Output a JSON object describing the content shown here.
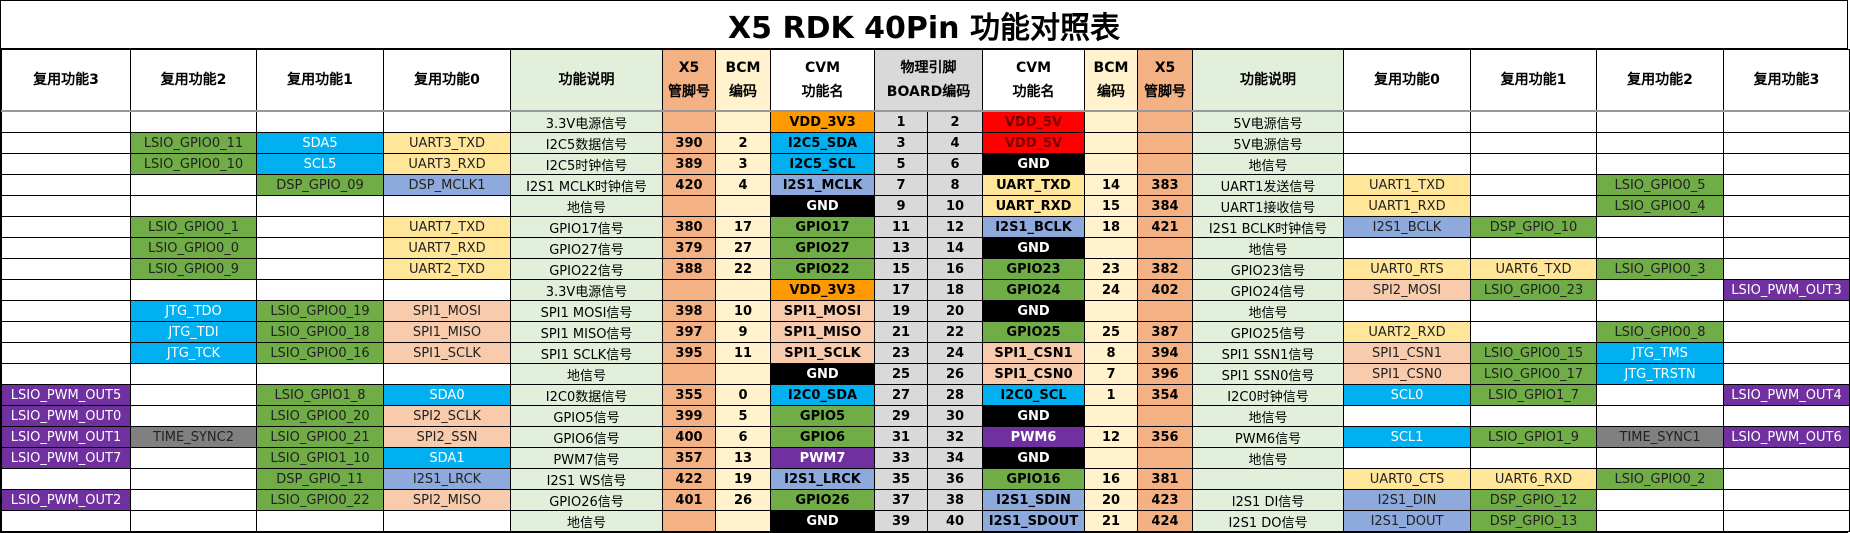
{
  "title": "X5 RDK 40Pin 功能对照表",
  "colors": {
    "x5": "#F4B183",
    "bcm": "#FFF2CC",
    "desc": "#E2EFDA",
    "pin": "#D9D9D9",
    "green": "#70AD47",
    "blue": "#00B0F0",
    "lblue": "#8EA9DB",
    "yellow": "#FFE699",
    "peach": "#F8CBAD",
    "purple": "#7030A0",
    "gray": "#808080",
    "orange": "#FF9900",
    "red": "#FF0000",
    "black": "#000000",
    "none": "#FFFFFF"
  },
  "headers": {
    "left_alt3": "复用功能3",
    "left_alt2": "复用功能2",
    "left_alt1": "复用功能1",
    "left_alt0": "复用功能0",
    "left_desc": "功能说明",
    "left_x5": "X5\n管脚号",
    "left_bcm": "BCM\n编码",
    "left_cvm": "CVM\n功能名",
    "board": "物理引脚\nBOARD编码",
    "right_cvm": "CVM\n功能名",
    "right_bcm": "BCM\n编码",
    "right_x5": "X5\n管脚号",
    "right_desc": "功能说明",
    "right_alt0": "复用功能0",
    "right_alt1": "复用功能1",
    "right_alt2": "复用功能2",
    "right_alt3": "复用功能3"
  },
  "rows": [
    {
      "l3": [
        "",
        ""
      ],
      "l2": [
        "",
        ""
      ],
      "l1": [
        "",
        ""
      ],
      "l0": [
        "",
        ""
      ],
      "ldesc": "3.3V电源信号",
      "lx5": "",
      "lbcm": "",
      "lcvm": [
        "VDD_3V3",
        "orange"
      ],
      "lpin": "1",
      "rpin": "2",
      "rcvm": [
        "VDD_5V",
        "red"
      ],
      "rbcm": "",
      "rx5": "",
      "rdesc": "5V电源信号",
      "r0": [
        "",
        ""
      ],
      "r1": [
        "",
        ""
      ],
      "r2": [
        "",
        ""
      ],
      "r3": [
        "",
        ""
      ]
    },
    {
      "l3": [
        "",
        ""
      ],
      "l2": [
        "LSIO_GPIO0_11",
        "green"
      ],
      "l1": [
        "SDA5",
        "blue"
      ],
      "l0": [
        "UART3_TXD",
        "yellow"
      ],
      "ldesc": "I2C5数据信号",
      "lx5": "390",
      "lbcm": "2",
      "lcvm": [
        "I2C5_SDA",
        "blue"
      ],
      "lpin": "3",
      "rpin": "4",
      "rcvm": [
        "VDD_5V",
        "red"
      ],
      "rbcm": "",
      "rx5": "",
      "rdesc": "5V电源信号",
      "r0": [
        "",
        ""
      ],
      "r1": [
        "",
        ""
      ],
      "r2": [
        "",
        ""
      ],
      "r3": [
        "",
        ""
      ]
    },
    {
      "l3": [
        "",
        ""
      ],
      "l2": [
        "LSIO_GPIO0_10",
        "green"
      ],
      "l1": [
        "SCL5",
        "blue"
      ],
      "l0": [
        "UART3_RXD",
        "yellow"
      ],
      "ldesc": "I2C5时钟信号",
      "lx5": "389",
      "lbcm": "3",
      "lcvm": [
        "I2C5_SCL",
        "blue"
      ],
      "lpin": "5",
      "rpin": "6",
      "rcvm": [
        "GND",
        "black"
      ],
      "rbcm": "",
      "rx5": "",
      "rdesc": "地信号",
      "r0": [
        "",
        ""
      ],
      "r1": [
        "",
        ""
      ],
      "r2": [
        "",
        ""
      ],
      "r3": [
        "",
        ""
      ]
    },
    {
      "l3": [
        "",
        ""
      ],
      "l2": [
        "",
        ""
      ],
      "l1": [
        "DSP_GPIO_09",
        "green"
      ],
      "l0": [
        "DSP_MCLK1",
        "lblue"
      ],
      "ldesc": "I2S1 MCLK时钟信号",
      "lx5": "420",
      "lbcm": "4",
      "lcvm": [
        "I2S1_MCLK",
        "lblue"
      ],
      "lpin": "7",
      "rpin": "8",
      "rcvm": [
        "UART_TXD",
        "yellow"
      ],
      "rbcm": "14",
      "rx5": "383",
      "rdesc": "UART1发送信号",
      "r0": [
        "UART1_TXD",
        "yellow"
      ],
      "r1": [
        "",
        ""
      ],
      "r2": [
        "LSIO_GPIO0_5",
        "green"
      ],
      "r3": [
        "",
        ""
      ]
    },
    {
      "l3": [
        "",
        ""
      ],
      "l2": [
        "",
        ""
      ],
      "l1": [
        "",
        ""
      ],
      "l0": [
        "",
        ""
      ],
      "ldesc": "地信号",
      "lx5": "",
      "lbcm": "",
      "lcvm": [
        "GND",
        "black"
      ],
      "lpin": "9",
      "rpin": "10",
      "rcvm": [
        "UART_RXD",
        "yellow"
      ],
      "rbcm": "15",
      "rx5": "384",
      "rdesc": "UART1接收信号",
      "r0": [
        "UART1_RXD",
        "yellow"
      ],
      "r1": [
        "",
        ""
      ],
      "r2": [
        "LSIO_GPIO0_4",
        "green"
      ],
      "r3": [
        "",
        ""
      ]
    },
    {
      "l3": [
        "",
        ""
      ],
      "l2": [
        "LSIO_GPIO0_1",
        "green"
      ],
      "l1": [
        "",
        ""
      ],
      "l0": [
        "UART7_TXD",
        "yellow"
      ],
      "ldesc": "GPIO17信号",
      "lx5": "380",
      "lbcm": "17",
      "lcvm": [
        "GPIO17",
        "green"
      ],
      "lpin": "11",
      "rpin": "12",
      "rcvm": [
        "I2S1_BCLK",
        "lblue"
      ],
      "rbcm": "18",
      "rx5": "421",
      "rdesc": "I2S1 BCLK时钟信号",
      "r0": [
        "I2S1_BCLK",
        "lblue"
      ],
      "r1": [
        "DSP_GPIO_10",
        "green"
      ],
      "r2": [
        "",
        ""
      ],
      "r3": [
        "",
        ""
      ]
    },
    {
      "l3": [
        "",
        ""
      ],
      "l2": [
        "LSIO_GPIO0_0",
        "green"
      ],
      "l1": [
        "",
        ""
      ],
      "l0": [
        "UART7_RXD",
        "yellow"
      ],
      "ldesc": "GPIO27信号",
      "lx5": "379",
      "lbcm": "27",
      "lcvm": [
        "GPIO27",
        "green"
      ],
      "lpin": "13",
      "rpin": "14",
      "rcvm": [
        "GND",
        "black"
      ],
      "rbcm": "",
      "rx5": "",
      "rdesc": "地信号",
      "r0": [
        "",
        ""
      ],
      "r1": [
        "",
        ""
      ],
      "r2": [
        "",
        ""
      ],
      "r3": [
        "",
        ""
      ]
    },
    {
      "l3": [
        "",
        ""
      ],
      "l2": [
        "LSIO_GPIO0_9",
        "green"
      ],
      "l1": [
        "",
        ""
      ],
      "l0": [
        "UART2_TXD",
        "yellow"
      ],
      "ldesc": "GPIO22信号",
      "lx5": "388",
      "lbcm": "22",
      "lcvm": [
        "GPIO22",
        "green"
      ],
      "lpin": "15",
      "rpin": "16",
      "rcvm": [
        "GPIO23",
        "green"
      ],
      "rbcm": "23",
      "rx5": "382",
      "rdesc": "GPIO23信号",
      "r0": [
        "UART0_RTS",
        "yellow"
      ],
      "r1": [
        "UART6_TXD",
        "yellow"
      ],
      "r2": [
        "LSIO_GPIO0_3",
        "green"
      ],
      "r3": [
        "",
        ""
      ]
    },
    {
      "l3": [
        "",
        ""
      ],
      "l2": [
        "",
        ""
      ],
      "l1": [
        "",
        ""
      ],
      "l0": [
        "",
        ""
      ],
      "ldesc": "3.3V电源信号",
      "lx5": "",
      "lbcm": "",
      "lcvm": [
        "VDD_3V3",
        "orange"
      ],
      "lpin": "17",
      "rpin": "18",
      "rcvm": [
        "GPIO24",
        "green"
      ],
      "rbcm": "24",
      "rx5": "402",
      "rdesc": "GPIO24信号",
      "r0": [
        "SPI2_MOSI",
        "peach"
      ],
      "r1": [
        "LSIO_GPIO0_23",
        "green"
      ],
      "r2": [
        "",
        ""
      ],
      "r3": [
        "LSIO_PWM_OUT3",
        "purple"
      ]
    },
    {
      "l3": [
        "",
        ""
      ],
      "l2": [
        "JTG_TDO",
        "blue"
      ],
      "l1": [
        "LSIO_GPIO0_19",
        "green"
      ],
      "l0": [
        "SPI1_MOSI",
        "peach"
      ],
      "ldesc": "SPI1 MOSI信号",
      "lx5": "398",
      "lbcm": "10",
      "lcvm": [
        "SPI1_MOSI",
        "peach"
      ],
      "lpin": "19",
      "rpin": "20",
      "rcvm": [
        "GND",
        "black"
      ],
      "rbcm": "",
      "rx5": "",
      "rdesc": "地信号",
      "r0": [
        "",
        ""
      ],
      "r1": [
        "",
        ""
      ],
      "r2": [
        "",
        ""
      ],
      "r3": [
        "",
        ""
      ]
    },
    {
      "l3": [
        "",
        ""
      ],
      "l2": [
        "JTG_TDI",
        "blue"
      ],
      "l1": [
        "LSIO_GPIO0_18",
        "green"
      ],
      "l0": [
        "SPI1_MISO",
        "peach"
      ],
      "ldesc": "SPI1 MISO信号",
      "lx5": "397",
      "lbcm": "9",
      "lcvm": [
        "SPI1_MISO",
        "peach"
      ],
      "lpin": "21",
      "rpin": "22",
      "rcvm": [
        "GPIO25",
        "green"
      ],
      "rbcm": "25",
      "rx5": "387",
      "rdesc": "GPIO25信号",
      "r0": [
        "UART2_RXD",
        "yellow"
      ],
      "r1": [
        "",
        ""
      ],
      "r2": [
        "LSIO_GPIO0_8",
        "green"
      ],
      "r3": [
        "",
        ""
      ]
    },
    {
      "l3": [
        "",
        ""
      ],
      "l2": [
        "JTG_TCK",
        "blue"
      ],
      "l1": [
        "LSIO_GPIO0_16",
        "green"
      ],
      "l0": [
        "SPI1_SCLK",
        "peach"
      ],
      "ldesc": "SPI1 SCLK信号",
      "lx5": "395",
      "lbcm": "11",
      "lcvm": [
        "SPI1_SCLK",
        "peach"
      ],
      "lpin": "23",
      "rpin": "24",
      "rcvm": [
        "SPI1_CSN1",
        "peach"
      ],
      "rbcm": "8",
      "rx5": "394",
      "rdesc": "SPI1 SSN1信号",
      "r0": [
        "SPI1_CSN1",
        "peach"
      ],
      "r1": [
        "LSIO_GPIO0_15",
        "green"
      ],
      "r2": [
        "JTG_TMS",
        "blue"
      ],
      "r3": [
        "",
        ""
      ]
    },
    {
      "l3": [
        "",
        ""
      ],
      "l2": [
        "",
        ""
      ],
      "l1": [
        "",
        ""
      ],
      "l0": [
        "",
        ""
      ],
      "ldesc": "地信号",
      "lx5": "",
      "lbcm": "",
      "lcvm": [
        "GND",
        "black"
      ],
      "lpin": "25",
      "rpin": "26",
      "rcvm": [
        "SPI1_CSN0",
        "peach"
      ],
      "rbcm": "7",
      "rx5": "396",
      "rdesc": "SPI1 SSN0信号",
      "r0": [
        "SPI1_CSN0",
        "peach"
      ],
      "r1": [
        "LSIO_GPIO0_17",
        "green"
      ],
      "r2": [
        "JTG_TRSTN",
        "blue"
      ],
      "r3": [
        "",
        ""
      ]
    },
    {
      "l3": [
        "LSIO_PWM_OUT5",
        "purple"
      ],
      "l2": [
        "",
        ""
      ],
      "l1": [
        "LSIO_GPIO1_8",
        "green"
      ],
      "l0": [
        "SDA0",
        "blue"
      ],
      "ldesc": "I2C0数据信号",
      "lx5": "355",
      "lbcm": "0",
      "lcvm": [
        "I2C0_SDA",
        "blue"
      ],
      "lpin": "27",
      "rpin": "28",
      "rcvm": [
        "I2C0_SCL",
        "blue"
      ],
      "rbcm": "1",
      "rx5": "354",
      "rdesc": "I2C0时钟信号",
      "r0": [
        "SCL0",
        "blue"
      ],
      "r1": [
        "LSIO_GPIO1_7",
        "green"
      ],
      "r2": [
        "",
        ""
      ],
      "r3": [
        "LSIO_PWM_OUT4",
        "purple"
      ]
    },
    {
      "l3": [
        "LSIO_PWM_OUT0",
        "purple"
      ],
      "l2": [
        "",
        ""
      ],
      "l1": [
        "LSIO_GPIO0_20",
        "green"
      ],
      "l0": [
        "SPI2_SCLK",
        "peach"
      ],
      "ldesc": "GPIO5信号",
      "lx5": "399",
      "lbcm": "5",
      "lcvm": [
        "GPIO5",
        "green"
      ],
      "lpin": "29",
      "rpin": "30",
      "rcvm": [
        "GND",
        "black"
      ],
      "rbcm": "",
      "rx5": "",
      "rdesc": "地信号",
      "r0": [
        "",
        ""
      ],
      "r1": [
        "",
        ""
      ],
      "r2": [
        "",
        ""
      ],
      "r3": [
        "",
        ""
      ]
    },
    {
      "l3": [
        "LSIO_PWM_OUT1",
        "purple"
      ],
      "l2": [
        "TIME_SYNC2",
        "gray"
      ],
      "l1": [
        "LSIO_GPIO0_21",
        "green"
      ],
      "l0": [
        "SPI2_SSN",
        "peach"
      ],
      "ldesc": "GPIO6信号",
      "lx5": "400",
      "lbcm": "6",
      "lcvm": [
        "GPIO6",
        "green"
      ],
      "lpin": "31",
      "rpin": "32",
      "rcvm": [
        "PWM6",
        "purple"
      ],
      "rbcm": "12",
      "rx5": "356",
      "rdesc": "PWM6信号",
      "r0": [
        "SCL1",
        "blue"
      ],
      "r1": [
        "LSIO_GPIO1_9",
        "green"
      ],
      "r2": [
        "TIME_SYNC1",
        "gray"
      ],
      "r3": [
        "LSIO_PWM_OUT6",
        "purple"
      ]
    },
    {
      "l3": [
        "LSIO_PWM_OUT7",
        "purple"
      ],
      "l2": [
        "",
        ""
      ],
      "l1": [
        "LSIO_GPIO1_10",
        "green"
      ],
      "l0": [
        "SDA1",
        "blue"
      ],
      "ldesc": "PWM7信号",
      "lx5": "357",
      "lbcm": "13",
      "lcvm": [
        "PWM7",
        "purple"
      ],
      "lpin": "33",
      "rpin": "34",
      "rcvm": [
        "GND",
        "black"
      ],
      "rbcm": "",
      "rx5": "",
      "rdesc": "地信号",
      "r0": [
        "",
        ""
      ],
      "r1": [
        "",
        ""
      ],
      "r2": [
        "",
        ""
      ],
      "r3": [
        "",
        ""
      ]
    },
    {
      "l3": [
        "",
        ""
      ],
      "l2": [
        "",
        ""
      ],
      "l1": [
        "DSP_GPIO_11",
        "green"
      ],
      "l0": [
        "I2S1_LRCK",
        "lblue"
      ],
      "ldesc": "I2S1 WS信号",
      "lx5": "422",
      "lbcm": "19",
      "lcvm": [
        "I2S1_LRCK",
        "lblue"
      ],
      "lpin": "35",
      "rpin": "36",
      "rcvm": [
        "GPIO16",
        "green"
      ],
      "rbcm": "16",
      "rx5": "381",
      "rdesc": "",
      "r0": [
        "UART0_CTS",
        "yellow"
      ],
      "r1": [
        "UART6_RXD",
        "yellow"
      ],
      "r2": [
        "LSIO_GPIO0_2",
        "green"
      ],
      "r3": [
        "",
        ""
      ]
    },
    {
      "l3": [
        "LSIO_PWM_OUT2",
        "purple"
      ],
      "l2": [
        "",
        ""
      ],
      "l1": [
        "LSIO_GPIO0_22",
        "green"
      ],
      "l0": [
        "SPI2_MISO",
        "peach"
      ],
      "ldesc": "GPIO26信号",
      "lx5": "401",
      "lbcm": "26",
      "lcvm": [
        "GPIO26",
        "green"
      ],
      "lpin": "37",
      "rpin": "38",
      "rcvm": [
        "I2S1_SDIN",
        "lblue"
      ],
      "rbcm": "20",
      "rx5": "423",
      "rdesc": "I2S1 DI信号",
      "r0": [
        "I2S1_DIN",
        "lblue"
      ],
      "r1": [
        "DSP_GPIO_12",
        "green"
      ],
      "r2": [
        "",
        ""
      ],
      "r3": [
        "",
        ""
      ]
    },
    {
      "l3": [
        "",
        ""
      ],
      "l2": [
        "",
        ""
      ],
      "l1": [
        "",
        ""
      ],
      "l0": [
        "",
        ""
      ],
      "ldesc": "地信号",
      "lx5": "",
      "lbcm": "",
      "lcvm": [
        "GND",
        "black"
      ],
      "lpin": "39",
      "rpin": "40",
      "rcvm": [
        "I2S1_SDOUT",
        "lblue"
      ],
      "rbcm": "21",
      "rx5": "424",
      "rdesc": "I2S1 DO信号",
      "r0": [
        "I2S1_DOUT",
        "lblue"
      ],
      "r1": [
        "DSP_GPIO_13",
        "green"
      ],
      "r2": [
        "",
        ""
      ],
      "r3": [
        "",
        ""
      ]
    }
  ]
}
